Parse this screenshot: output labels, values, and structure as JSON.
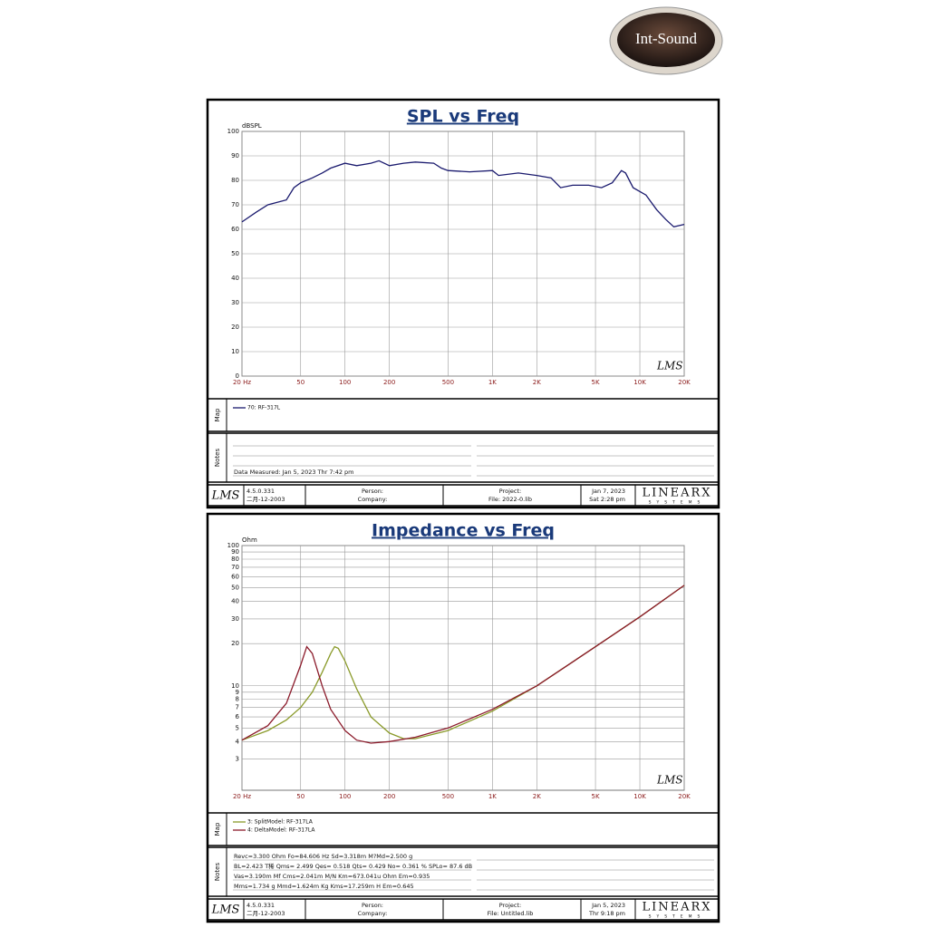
{
  "logo": "Int-Sound",
  "chart_data": [
    {
      "type": "line",
      "title": "SPL vs Freq",
      "y_label": "dBSPL",
      "xscale": "log",
      "yscale": "linear",
      "grid": true,
      "xlim": [
        20,
        20000
      ],
      "ylim": [
        0,
        100
      ],
      "xticks": [
        {
          "value": 20,
          "label": "20 Hz"
        },
        50,
        100,
        200,
        500,
        {
          "value": 1000,
          "label": "1K"
        },
        {
          "value": 2000,
          "label": "2K"
        },
        {
          "value": 5000,
          "label": "5K"
        },
        {
          "value": 10000,
          "label": "10K"
        },
        {
          "value": 20000,
          "label": "20K"
        }
      ],
      "yticks": [
        0,
        10,
        20,
        30,
        40,
        50,
        60,
        70,
        80,
        90,
        100
      ],
      "series": [
        {
          "name": "70: RF-317L",
          "color": "#1a1a6e",
          "x": [
            20,
            25,
            30,
            40,
            45,
            50,
            60,
            70,
            80,
            100,
            120,
            150,
            170,
            200,
            250,
            300,
            400,
            450,
            500,
            700,
            1000,
            1100,
            1500,
            2000,
            2500,
            2900,
            3500,
            4500,
            5500,
            6500,
            7500,
            8000,
            9000,
            11000,
            13000,
            15000,
            17000,
            20000
          ],
          "values": [
            63,
            67,
            70,
            72,
            77,
            79,
            81,
            83,
            85,
            87,
            86,
            87,
            88,
            86,
            87,
            87.5,
            87,
            85,
            84,
            83.5,
            84,
            82,
            83,
            82,
            81,
            77,
            78,
            78,
            77,
            79,
            84,
            83,
            77,
            74,
            68,
            64,
            61,
            62
          ]
        }
      ],
      "map_label": "Map",
      "notes_label": "Notes",
      "notes": [
        "Data Measured: Jan 5, 2023  Thr  7:42 pm"
      ],
      "watermark": "LMS",
      "footer": {
        "logo": "LMS",
        "version": "4.5.0.331",
        "version_date": "二月-12-2003",
        "person": "Person:",
        "company": "Company:",
        "project": "Project:",
        "file": "File: 2022-0.lib",
        "date": "Jan 7, 2023",
        "time": "Sat  2:28 pm",
        "brand": "LINEARX",
        "brand_sub": "SYSTEMS"
      }
    },
    {
      "type": "line",
      "title": "Impedance vs Freq",
      "y_label": "Ohm",
      "xscale": "log",
      "yscale": "log",
      "grid": true,
      "xlim": [
        20,
        20000
      ],
      "ylim": [
        1.8,
        100
      ],
      "xticks": [
        {
          "value": 20,
          "label": "20 Hz"
        },
        50,
        100,
        200,
        500,
        {
          "value": 1000,
          "label": "1K"
        },
        {
          "value": 2000,
          "label": "2K"
        },
        {
          "value": 5000,
          "label": "5K"
        },
        {
          "value": 10000,
          "label": "10K"
        },
        {
          "value": 20000,
          "label": "20K"
        }
      ],
      "yticks": [
        3,
        4,
        5,
        6,
        7,
        8,
        9,
        10,
        20,
        30,
        40,
        50,
        60,
        70,
        80,
        90,
        100
      ],
      "series": [
        {
          "name": "3: SplitModel: RF-317LA",
          "color": "#8a9a2a",
          "x": [
            20,
            30,
            40,
            50,
            60,
            70,
            80,
            85,
            90,
            100,
            120,
            150,
            200,
            250,
            300,
            500,
            1000,
            2000,
            5000,
            10000,
            20000
          ],
          "values": [
            4.1,
            4.8,
            5.7,
            7,
            9,
            12.5,
            17,
            19,
            18.5,
            15,
            9.5,
            6,
            4.6,
            4.2,
            4.2,
            4.8,
            6.6,
            10,
            19,
            31,
            52
          ]
        },
        {
          "name": "4: DeltaModel: RF-317LA",
          "color": "#8b1a2a",
          "x": [
            20,
            30,
            40,
            50,
            55,
            60,
            70,
            80,
            100,
            120,
            150,
            200,
            300,
            500,
            1000,
            2000,
            5000,
            10000,
            20000
          ],
          "values": [
            4.1,
            5.2,
            7.5,
            14,
            19,
            17,
            10,
            6.8,
            4.8,
            4.1,
            3.9,
            4.0,
            4.3,
            5.0,
            6.8,
            10,
            19,
            31,
            52
          ]
        }
      ],
      "map_label": "Map",
      "notes_label": "Notes",
      "notes": [
        "Revc=3.300 Ohm  Fo=84.606 Hz  Sd=3.318m M?Md=2.500 g",
        "BL=2.423 T稀  Qms= 2.499  Qes= 0.518  Qts= 0.429  No= 0.361 %  SPLo= 87.6 dB",
        "Vas=3.190m Mf Cms=2.041m M/N  Km=673.041u Ohm  Em=0.935",
        "Mms=1.734 g  Mmd=1.624m Kg  Kms=17.259m H  Em=0.645"
      ],
      "watermark": "LMS",
      "footer": {
        "logo": "LMS",
        "version": "4.5.0.331",
        "version_date": "二月-12-2003",
        "person": "Person:",
        "company": "Company:",
        "project": "Project:",
        "file": "File: Untitled.lib",
        "date": "Jan 5, 2023",
        "time": "Thr  9:18 pm",
        "brand": "LINEARX",
        "brand_sub": "SYSTEMS"
      }
    }
  ]
}
